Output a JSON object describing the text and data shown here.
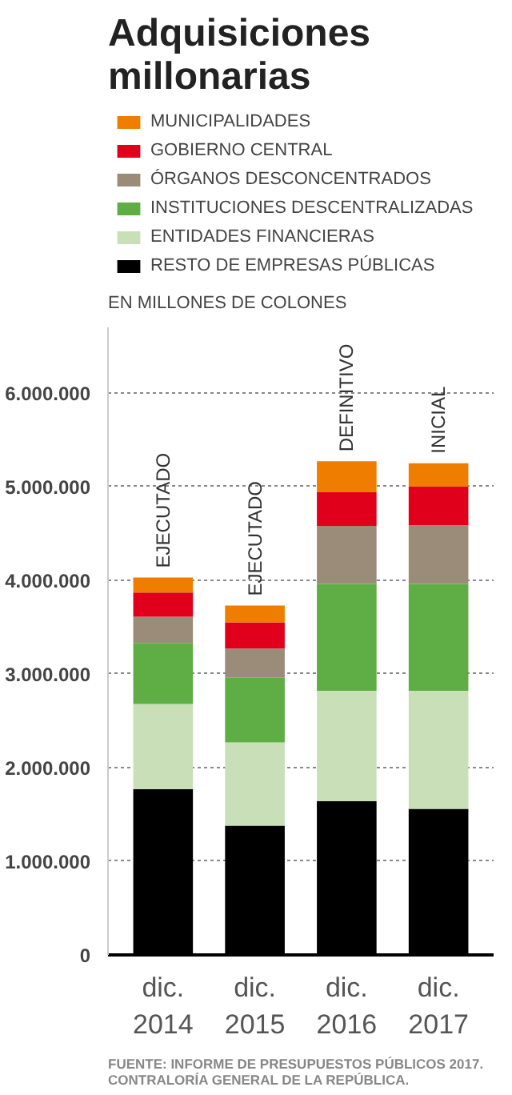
{
  "chart_data": {
    "type": "bar",
    "stacked": true,
    "title": "Adquisiciones millonarias",
    "ylabel": "EN MILLONES DE COLONES",
    "categories": [
      "dic. 2014",
      "dic. 2015",
      "dic. 2016",
      "dic. 2017"
    ],
    "series": [
      {
        "name": "RESTO DE EMPRESAS PÚBLICAS",
        "color": "#000000",
        "values": [
          1770000,
          1380000,
          1640000,
          1560000
        ]
      },
      {
        "name": "ENTIDADES FINANCIERAS",
        "color": "#c8dfb8",
        "values": [
          910000,
          890000,
          1180000,
          1260000
        ]
      },
      {
        "name": "INSTITUCIONES DESCENTRALIZADAS",
        "color": "#5fae45",
        "values": [
          650000,
          690000,
          1140000,
          1140000
        ]
      },
      {
        "name": "ÓRGANOS DESCONCENTRADOS",
        "color": "#9a8c78",
        "values": [
          280000,
          310000,
          620000,
          630000
        ]
      },
      {
        "name": "GOBIERNO CENTRAL",
        "color": "#e0001b",
        "values": [
          260000,
          280000,
          360000,
          410000
        ]
      },
      {
        "name": "MUNICIPALIDADES",
        "color": "#ee7d00",
        "values": [
          160000,
          180000,
          330000,
          250000
        ]
      }
    ],
    "ylim": [
      0,
      6700000
    ],
    "yticks": [
      {
        "value": 0,
        "label": "0"
      },
      {
        "value": 1000000,
        "label": "1.000.000"
      },
      {
        "value": 2000000,
        "label": "2.000.000"
      },
      {
        "value": 3000000,
        "label": "3.000.000"
      },
      {
        "value": 4000000,
        "label": "4.000.000"
      },
      {
        "value": 5000000,
        "label": "5.000.000"
      },
      {
        "value": 6000000,
        "label": "6.000.000"
      }
    ],
    "grid": "y",
    "legend": "top",
    "annotations": [
      {
        "text": "EJECUTADO",
        "x": "dic. 2014",
        "y": 4030000
      },
      {
        "text": "EJECUTADO",
        "x": "dic. 2015",
        "y": 3730000
      },
      {
        "text": "DEFINITIVO",
        "x": "dic. 2016",
        "y": 5270000
      },
      {
        "text": "INICIAL",
        "x": "dic. 2017",
        "y": 5250000
      },
      "FUENTE: INFORME DE PRESUPUESTOS PÚBLICOS 2017. CONTRALORÍA GENERAL DE LA REPÚBLICA."
    ]
  }
}
